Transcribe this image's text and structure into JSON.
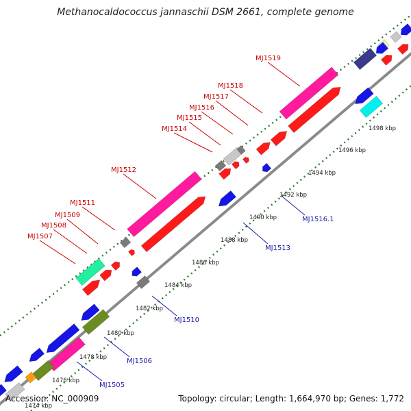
{
  "title": "Methanocaldococcus jannaschii DSM 2661, complete genome",
  "footer": {
    "accession": "Accession: NC_000909",
    "summary": "Topology: circular; Length: 1,664,970 bp; Genes: 1,772"
  },
  "colors": {
    "backbone": "#8a8a8a",
    "tick_dots": "#2e7d32",
    "forward_label": "#cc0000",
    "reverse_label": "#1a1aa8",
    "cds_red": "#ff1a1a",
    "cds_blue": "#1515e6",
    "cog_magenta": "#ff1a9e",
    "cog_cyan": "#00f0f0",
    "cog_green": "#20f0a0",
    "cog_olive": "#6b8c23",
    "cog_navy": "#3a3a8a",
    "cog_gray": "#7a7a7a",
    "cog_lightgray": "#c8c8c8",
    "cog_orange": "#ff9910",
    "cog_yellow": "#f0f0b0"
  },
  "ticks": [
    "1474 kbp",
    "1476 kbp",
    "1478 kbp",
    "1480 kbp",
    "1482 kbp",
    "1484 kbp",
    "1486 kbp",
    "1488 kbp",
    "1490 kbp",
    "1492 kbp",
    "1494 kbp",
    "1496 kbp",
    "1498 kbp"
  ],
  "forward_genes": [
    "MJ1507",
    "MJ1508",
    "MJ1509",
    "MJ1511",
    "MJ1512",
    "MJ1514",
    "MJ1515",
    "MJ1516",
    "MJ1517",
    "MJ1518",
    "MJ1519"
  ],
  "reverse_genes": [
    "MJ1505",
    "MJ1506",
    "MJ1510",
    "MJ1513",
    "MJ1516.1"
  ]
}
